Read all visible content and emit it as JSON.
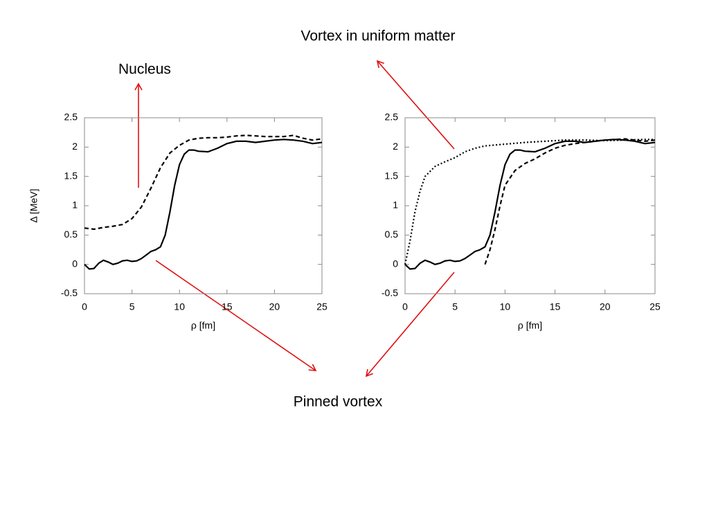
{
  "annotations": [
    "Nucleus",
    "Vortex in uniform matter",
    "Pinned vortex"
  ],
  "chart_data": [
    {
      "type": "line",
      "ylabel": "Δ  [MeV]",
      "xlabel": "ρ  [fm]",
      "xlim": [
        0,
        25
      ],
      "xticks": [
        0,
        5,
        10,
        15,
        20,
        25
      ],
      "ylim": [
        -0.5,
        2.5
      ],
      "yticks": [
        -0.5,
        0,
        0.5,
        1,
        1.5,
        2,
        2.5
      ],
      "series": [
        {
          "color": "#000000",
          "dash": "solid",
          "x": [
            0,
            0.5,
            1,
            1.5,
            2,
            2.5,
            3,
            3.5,
            4,
            4.5,
            5,
            5.5,
            6,
            6.5,
            7,
            7.5,
            8,
            8.5,
            9,
            9.5,
            10,
            10.5,
            11,
            11.5,
            12,
            13,
            14,
            15,
            16,
            17,
            18,
            19,
            20,
            21,
            22,
            23,
            24,
            25
          ],
          "values": [
            0.0,
            -0.08,
            -0.07,
            0.02,
            0.07,
            0.04,
            0.0,
            0.02,
            0.06,
            0.07,
            0.05,
            0.06,
            0.1,
            0.16,
            0.22,
            0.25,
            0.3,
            0.5,
            0.9,
            1.35,
            1.7,
            1.88,
            1.95,
            1.95,
            1.93,
            1.92,
            1.98,
            2.06,
            2.1,
            2.1,
            2.08,
            2.1,
            2.12,
            2.13,
            2.12,
            2.1,
            2.06,
            2.08
          ]
        },
        {
          "color": "#000000",
          "dash": "dashed",
          "x": [
            0,
            1,
            2,
            3,
            4,
            5,
            6,
            7,
            8,
            9,
            10,
            11,
            12,
            13,
            14,
            15,
            16,
            17,
            18,
            19,
            20,
            21,
            22,
            23,
            24,
            25
          ],
          "values": [
            0.62,
            0.6,
            0.63,
            0.65,
            0.68,
            0.78,
            0.98,
            1.3,
            1.65,
            1.9,
            2.03,
            2.12,
            2.15,
            2.16,
            2.16,
            2.17,
            2.19,
            2.2,
            2.19,
            2.18,
            2.18,
            2.18,
            2.2,
            2.15,
            2.12,
            2.14
          ]
        }
      ]
    },
    {
      "type": "line",
      "xlabel": "ρ  [fm]",
      "xlim": [
        0,
        25
      ],
      "xticks": [
        0,
        5,
        10,
        15,
        20,
        25
      ],
      "ylim": [
        -0.5,
        2.5
      ],
      "yticks": [
        -0.5,
        0,
        0.5,
        1,
        1.5,
        2,
        2.5
      ],
      "series": [
        {
          "color": "#000000",
          "dash": "solid",
          "x": [
            0,
            0.5,
            1,
            1.5,
            2,
            2.5,
            3,
            3.5,
            4,
            4.5,
            5,
            5.5,
            6,
            6.5,
            7,
            7.5,
            8,
            8.5,
            9,
            9.5,
            10,
            10.5,
            11,
            11.5,
            12,
            13,
            14,
            15,
            16,
            17,
            18,
            19,
            20,
            21,
            22,
            23,
            24,
            25
          ],
          "values": [
            0.0,
            -0.08,
            -0.07,
            0.02,
            0.07,
            0.04,
            0.0,
            0.02,
            0.06,
            0.07,
            0.05,
            0.06,
            0.1,
            0.16,
            0.22,
            0.25,
            0.3,
            0.5,
            0.9,
            1.35,
            1.7,
            1.88,
            1.95,
            1.95,
            1.93,
            1.92,
            1.98,
            2.06,
            2.1,
            2.1,
            2.08,
            2.1,
            2.12,
            2.13,
            2.12,
            2.1,
            2.06,
            2.08
          ]
        },
        {
          "color": "#000000",
          "dash": "dashed",
          "x": [
            8,
            8.5,
            9,
            9.5,
            10,
            11,
            12,
            13,
            14,
            15,
            16,
            17,
            18,
            19,
            20,
            21,
            22,
            23,
            24,
            25
          ],
          "values": [
            0,
            0.25,
            0.6,
            1.0,
            1.35,
            1.6,
            1.72,
            1.8,
            1.9,
            1.98,
            2.03,
            2.06,
            2.08,
            2.1,
            2.12,
            2.13,
            2.14,
            2.12,
            2.1,
            2.12
          ]
        },
        {
          "color": "#000000",
          "dash": "dotted",
          "x": [
            0,
            0.5,
            1,
            1.5,
            2,
            3,
            4,
            5,
            6,
            7,
            8,
            10,
            12,
            14,
            16,
            18,
            20,
            22,
            24,
            25
          ],
          "values": [
            0.0,
            0.4,
            0.9,
            1.25,
            1.5,
            1.67,
            1.75,
            1.82,
            1.92,
            1.98,
            2.02,
            2.05,
            2.08,
            2.1,
            2.12,
            2.12,
            2.11,
            2.12,
            2.13,
            2.13
          ]
        }
      ]
    }
  ]
}
